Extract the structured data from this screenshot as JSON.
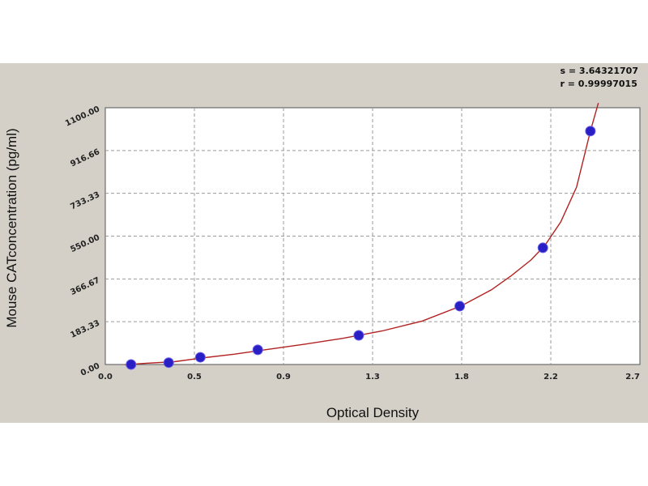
{
  "stats": {
    "s_label": "s = 3.64321707",
    "r_label": "r = 0.99997015"
  },
  "chart_data": {
    "type": "scatter",
    "title": "",
    "xlabel": "Optical Density",
    "ylabel": "Mouse CATconcentration (pg/ml)",
    "xlim": [
      0.0,
      2.7
    ],
    "ylim": [
      0.0,
      1100.0
    ],
    "x_ticks": [
      "0.0",
      "0.5",
      "0.9",
      "1.3",
      "1.8",
      "2.2",
      "2.7"
    ],
    "y_ticks": [
      "0.00",
      "183.33",
      "366.67",
      "550.00",
      "733.33",
      "916.66",
      "1100.00"
    ],
    "grid": true,
    "points": [
      {
        "x": 0.13,
        "y": 0
      },
      {
        "x": 0.32,
        "y": 8
      },
      {
        "x": 0.48,
        "y": 31
      },
      {
        "x": 0.77,
        "y": 63
      },
      {
        "x": 1.28,
        "y": 125
      },
      {
        "x": 1.79,
        "y": 250
      },
      {
        "x": 2.21,
        "y": 500
      },
      {
        "x": 2.45,
        "y": 1000
      }
    ],
    "fit_curve": [
      {
        "x": 0.1,
        "y": -1
      },
      {
        "x": 0.2,
        "y": 5
      },
      {
        "x": 0.35,
        "y": 12
      },
      {
        "x": 0.5,
        "y": 29
      },
      {
        "x": 0.65,
        "y": 44
      },
      {
        "x": 0.8,
        "y": 62
      },
      {
        "x": 1.0,
        "y": 86
      },
      {
        "x": 1.2,
        "y": 112
      },
      {
        "x": 1.4,
        "y": 144
      },
      {
        "x": 1.6,
        "y": 186
      },
      {
        "x": 1.8,
        "y": 252
      },
      {
        "x": 1.95,
        "y": 320
      },
      {
        "x": 2.05,
        "y": 380
      },
      {
        "x": 2.15,
        "y": 448
      },
      {
        "x": 2.22,
        "y": 510
      },
      {
        "x": 2.3,
        "y": 610
      },
      {
        "x": 2.38,
        "y": 760
      },
      {
        "x": 2.45,
        "y": 1000
      },
      {
        "x": 2.49,
        "y": 1120
      }
    ],
    "colors": {
      "curve": "#b22222",
      "point": "#2a1fc4",
      "grid": "#9a9a9a",
      "plot_bg": "#ffffff",
      "frame_bg": "#d4d0c8"
    }
  }
}
